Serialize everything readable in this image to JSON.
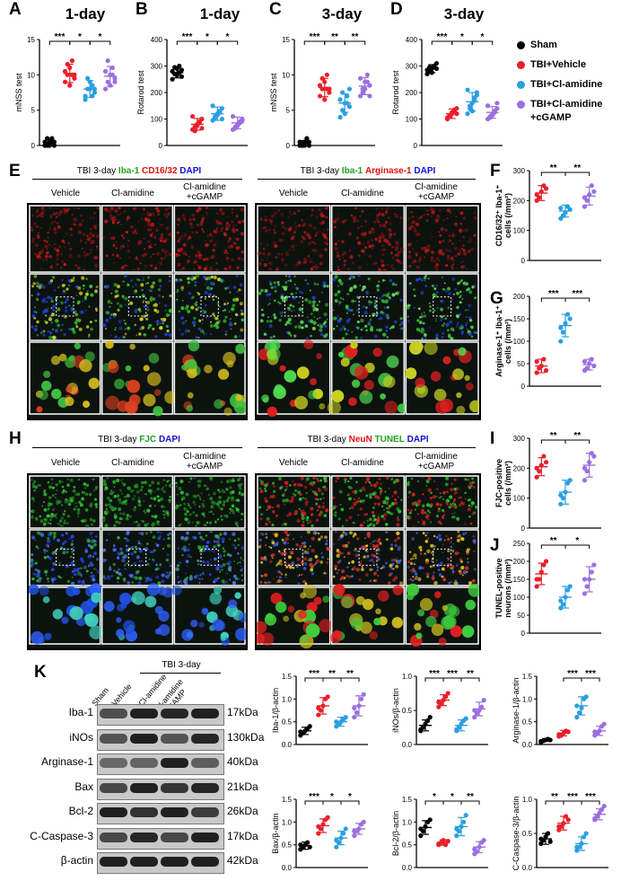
{
  "colors": {
    "sham": "#000000",
    "vehicle": "#e8202a",
    "clamidine": "#2a9fe0",
    "cgamp": "#9b6fe0"
  },
  "legend": [
    {
      "label": "Sham",
      "color": "#000000"
    },
    {
      "label": "TBI+Vehicle",
      "color": "#e8202a"
    },
    {
      "label": "TBI+Cl-amidine",
      "color": "#2a9fe0"
    },
    {
      "label": "TBI+Cl-amidine",
      "label2": "+cGAMP",
      "color": "#9b6fe0"
    }
  ],
  "panels": {
    "A": {
      "letter": "A",
      "title": "1-day",
      "ylabel": "mNSS test"
    },
    "B": {
      "letter": "B",
      "title": "1-day",
      "ylabel": "Rotarod test"
    },
    "C": {
      "letter": "C",
      "title": "3-day",
      "ylabel": "mNSS test"
    },
    "D": {
      "letter": "D",
      "title": "3-day",
      "ylabel": "Rotarod test"
    },
    "E": {
      "letter": "E",
      "left_title_pre": "TBI 3-day ",
      "left_s1": "Iba-1",
      "left_s2": "CD16/32",
      "left_s3": "DAPI",
      "right_title_pre": "TBI 3-day ",
      "right_s1": "Iba-1",
      "right_s2": "Arginase-1",
      "right_s3": "DAPI",
      "cols": [
        "Vehicle",
        "Cl-amidine",
        "Cl-amidine",
        "+cGAMP"
      ]
    },
    "F": {
      "letter": "F",
      "ylabel1": "CD16/32⁺ Iba-1⁺",
      "ylabel2": "cells (/mm²)"
    },
    "G": {
      "letter": "G",
      "ylabel1": "Arginase-1⁺ Iba-1⁺",
      "ylabel2": "cells (/mm²)"
    },
    "H": {
      "letter": "H",
      "left_title_pre": "TBI 3-day ",
      "left_s1": "FJC",
      "left_s3": "DAPI",
      "right_title_pre": "TBI 3-day ",
      "right_s1": "NeuN",
      "right_s2": "TUNEL",
      "right_s3": "DAPI"
    },
    "I": {
      "letter": "I",
      "ylabel1": "FJC-positive",
      "ylabel2": "cells (/mm²)"
    },
    "J": {
      "letter": "J",
      "ylabel1": "TUNEL-positive",
      "ylabel2": "neurons (/mm²)"
    },
    "K": {
      "letter": "K",
      "header": "TBI 3-day",
      "lanes": [
        "Sham",
        "Vehicle",
        "Cl-amidine",
        "Cl-amidine",
        "+cGAMP"
      ],
      "proteins": [
        {
          "name": "Iba-1",
          "kda": "17kDa"
        },
        {
          "name": "iNOs",
          "kda": "130kDa"
        },
        {
          "name": "Arginase-1",
          "kda": "40kDa"
        },
        {
          "name": "Bax",
          "kda": "21kDa"
        },
        {
          "name": "Bcl-2",
          "kda": "26kDa"
        },
        {
          "name": "C-Caspase-3",
          "kda": "17kDa"
        },
        {
          "name": "β-actin",
          "kda": "42kDa"
        }
      ]
    }
  },
  "chart_data": [
    {
      "id": "A",
      "type": "scatter",
      "title": "1-day",
      "ylabel": "mNSS test",
      "ylim": [
        0,
        15
      ],
      "yticks": [
        0,
        5,
        10,
        15
      ],
      "groups": [
        "Sham",
        "TBI+Vehicle",
        "TBI+Cl-amidine",
        "TBI+Cl-amidine+cGAMP"
      ],
      "means": [
        0.4,
        10.2,
        8.0,
        9.8
      ],
      "sd": [
        0.4,
        1.3,
        1.2,
        1.4
      ],
      "points": [
        [
          0,
          0,
          0.5,
          1,
          0,
          0.5,
          1,
          0,
          0.5,
          0.5
        ],
        [
          9,
          10,
          11,
          12,
          9.5,
          10.5,
          11.5,
          8.5,
          10,
          10
        ],
        [
          7,
          8,
          9,
          8.5,
          7.5,
          6.5,
          9.5,
          8,
          7,
          8
        ],
        [
          8,
          9,
          10,
          11,
          9.5,
          10.5,
          12,
          8.5,
          10,
          9
        ]
      ],
      "sig": [
        {
          "a": 0,
          "b": 1,
          "t": "***"
        },
        {
          "a": 1,
          "b": 2,
          "t": "*"
        },
        {
          "a": 2,
          "b": 3,
          "t": "*"
        }
      ]
    },
    {
      "id": "B",
      "type": "scatter",
      "title": "1-day",
      "ylabel": "Rotarod test",
      "ylim": [
        0,
        400
      ],
      "yticks": [
        0,
        100,
        200,
        300,
        400
      ],
      "groups": [
        "Sham",
        "TBI+Vehicle",
        "TBI+Cl-amidine",
        "TBI+Cl-amidine+cGAMP"
      ],
      "means": [
        275,
        80,
        120,
        85
      ],
      "sd": [
        20,
        22,
        25,
        22
      ],
      "points": [
        [
          250,
          270,
          290,
          300,
          260,
          280,
          295,
          265,
          275,
          285
        ],
        [
          60,
          70,
          80,
          90,
          100,
          110,
          55,
          75,
          85,
          65
        ],
        [
          95,
          110,
          120,
          130,
          140,
          150,
          105,
          115,
          125,
          100
        ],
        [
          60,
          70,
          80,
          90,
          100,
          110,
          65,
          75,
          85,
          95
        ]
      ],
      "sig": [
        {
          "a": 0,
          "b": 1,
          "t": "***"
        },
        {
          "a": 1,
          "b": 2,
          "t": "*"
        },
        {
          "a": 2,
          "b": 3,
          "t": "*"
        }
      ]
    },
    {
      "id": "C",
      "type": "scatter",
      "title": "3-day",
      "ylabel": "mNSS test",
      "ylim": [
        0,
        15
      ],
      "yticks": [
        0,
        5,
        10,
        15
      ],
      "groups": [
        "Sham",
        "TBI+Vehicle",
        "TBI+Cl-amidine",
        "TBI+Cl-amidine+cGAMP"
      ],
      "means": [
        0.3,
        8.2,
        6.0,
        8.4
      ],
      "sd": [
        0.4,
        1.3,
        1.3,
        1.2
      ],
      "points": [
        [
          0,
          0,
          0.5,
          1,
          0,
          0.5,
          0,
          0,
          0.5,
          0.5
        ],
        [
          7,
          8,
          9,
          10,
          7.5,
          8.5,
          9.5,
          6.5,
          8,
          8
        ],
        [
          4,
          5,
          6,
          7,
          5.5,
          6.5,
          7.5,
          4.5,
          6,
          8
        ],
        [
          7,
          8,
          9,
          10,
          8.5,
          9.5,
          7.5,
          8,
          9,
          7
        ]
      ],
      "sig": [
        {
          "a": 0,
          "b": 1,
          "t": "***"
        },
        {
          "a": 1,
          "b": 2,
          "t": "**"
        },
        {
          "a": 2,
          "b": 3,
          "t": "**"
        }
      ]
    },
    {
      "id": "D",
      "type": "scatter",
      "title": "3-day",
      "ylabel": "Rotarod test",
      "ylim": [
        0,
        400
      ],
      "yticks": [
        0,
        100,
        200,
        300,
        400
      ],
      "groups": [
        "Sham",
        "TBI+Vehicle",
        "TBI+Cl-amidine",
        "TBI+Cl-amidine+cGAMP"
      ],
      "means": [
        290,
        120,
        165,
        125
      ],
      "sd": [
        15,
        18,
        35,
        22
      ],
      "points": [
        [
          270,
          280,
          290,
          300,
          310,
          285,
          295,
          275,
          300,
          290
        ],
        [
          100,
          110,
          120,
          130,
          140,
          105,
          115,
          125,
          135,
          120
        ],
        [
          120,
          140,
          160,
          180,
          200,
          210,
          150,
          130,
          170,
          190
        ],
        [
          100,
          110,
          120,
          130,
          140,
          150,
          105,
          115,
          125,
          160
        ]
      ],
      "sig": [
        {
          "a": 0,
          "b": 1,
          "t": "***"
        },
        {
          "a": 1,
          "b": 2,
          "t": "*"
        },
        {
          "a": 2,
          "b": 3,
          "t": "*"
        }
      ]
    },
    {
      "id": "F",
      "type": "scatter",
      "ylabel": "CD16/32⁺ Iba-1⁺ cells (/mm²)",
      "ylim": [
        0,
        300
      ],
      "yticks": [
        0,
        100,
        200,
        300
      ],
      "groups": [
        "TBI+Vehicle",
        "TBI+Cl-amidine",
        "TBI+Cl-amidine+cGAMP"
      ],
      "means": [
        225,
        165,
        215
      ],
      "sd": [
        25,
        20,
        30
      ],
      "points": [
        [
          200,
          210,
          230,
          250,
          240,
          220
        ],
        [
          140,
          150,
          160,
          180,
          170,
          175
        ],
        [
          180,
          200,
          220,
          250,
          230,
          210
        ]
      ],
      "sig": [
        {
          "a": 0,
          "b": 1,
          "t": "**"
        },
        {
          "a": 1,
          "b": 2,
          "t": "**"
        }
      ]
    },
    {
      "id": "G",
      "type": "scatter",
      "ylabel": "Arginase-1⁺ Iba-1⁺ cells (/mm²)",
      "ylim": [
        0,
        200
      ],
      "yticks": [
        0,
        50,
        100,
        150,
        200
      ],
      "groups": [
        "TBI+Vehicle",
        "TBI+Cl-amidine",
        "TBI+Cl-amidine+cGAMP"
      ],
      "means": [
        45,
        135,
        48
      ],
      "sd": [
        15,
        25,
        12
      ],
      "points": [
        [
          30,
          40,
          45,
          60,
          35,
          55
        ],
        [
          100,
          120,
          140,
          160,
          150,
          130
        ],
        [
          35,
          40,
          50,
          60,
          45,
          55
        ]
      ],
      "sig": [
        {
          "a": 0,
          "b": 1,
          "t": "***"
        },
        {
          "a": 1,
          "b": 2,
          "t": "***"
        }
      ]
    },
    {
      "id": "I",
      "type": "scatter",
      "ylabel": "FJC-positive cells (/mm²)",
      "ylim": [
        0,
        300
      ],
      "yticks": [
        0,
        100,
        200,
        300
      ],
      "groups": [
        "TBI+Vehicle",
        "TBI+Cl-amidine",
        "TBI+Cl-amidine+cGAMP"
      ],
      "means": [
        205,
        120,
        210
      ],
      "sd": [
        30,
        40,
        40
      ],
      "points": [
        [
          170,
          190,
          210,
          240,
          220,
          200
        ],
        [
          80,
          100,
          120,
          150,
          160,
          110
        ],
        [
          160,
          190,
          220,
          250,
          240,
          200
        ]
      ],
      "sig": [
        {
          "a": 0,
          "b": 1,
          "t": "**"
        },
        {
          "a": 1,
          "b": 2,
          "t": "**"
        }
      ]
    },
    {
      "id": "J",
      "type": "scatter",
      "ylabel": "TUNEL-positive neurons (/mm²)",
      "ylim": [
        0,
        250
      ],
      "yticks": [
        0,
        50,
        100,
        150,
        200,
        250
      ],
      "groups": [
        "TBI+Vehicle",
        "TBI+Cl-amidine",
        "TBI+Cl-amidine+cGAMP"
      ],
      "means": [
        165,
        100,
        150
      ],
      "sd": [
        30,
        30,
        35
      ],
      "points": [
        [
          130,
          150,
          170,
          190,
          200,
          150
        ],
        [
          70,
          80,
          100,
          120,
          130,
          90
        ],
        [
          110,
          130,
          150,
          170,
          190,
          150
        ]
      ],
      "sig": [
        {
          "a": 0,
          "b": 1,
          "t": "**"
        },
        {
          "a": 1,
          "b": 2,
          "t": "*"
        }
      ]
    },
    {
      "id": "K1",
      "type": "scatter",
      "ylabel": "Iba-1/β-actin",
      "ylim": [
        0,
        1.5
      ],
      "yticks": [
        0.0,
        0.5,
        1.0,
        1.5
      ],
      "groups": [
        "Sham",
        "TBI+Vehicle",
        "TBI+Cl-amidine",
        "TBI+Cl-amidine+cGAMP"
      ],
      "means": [
        0.3,
        0.85,
        0.5,
        0.85
      ],
      "sd": [
        0.08,
        0.18,
        0.1,
        0.22
      ],
      "points": [
        [
          0.2,
          0.25,
          0.3,
          0.35,
          0.4,
          0.28
        ],
        [
          0.65,
          0.75,
          0.85,
          1.0,
          1.05,
          0.8
        ],
        [
          0.4,
          0.45,
          0.5,
          0.55,
          0.6,
          0.5
        ],
        [
          0.6,
          0.7,
          0.85,
          1.0,
          1.1,
          0.8
        ]
      ],
      "sig": [
        {
          "a": 0,
          "b": 1,
          "t": "***"
        },
        {
          "a": 1,
          "b": 2,
          "t": "**"
        },
        {
          "a": 2,
          "b": 3,
          "t": "**"
        }
      ]
    },
    {
      "id": "K2",
      "type": "scatter",
      "ylabel": "iNOs/β-actin",
      "ylim": [
        0,
        1.0
      ],
      "yticks": [
        0.0,
        0.5,
        1.0
      ],
      "groups": [
        "Sham",
        "TBI+Vehicle",
        "TBI+Cl-amidine",
        "TBI+Cl-amidine+cGAMP"
      ],
      "means": [
        0.28,
        0.65,
        0.28,
        0.52
      ],
      "sd": [
        0.08,
        0.08,
        0.08,
        0.1
      ],
      "points": [
        [
          0.2,
          0.25,
          0.3,
          0.35,
          0.4,
          0.22
        ],
        [
          0.55,
          0.6,
          0.65,
          0.7,
          0.75,
          0.62
        ],
        [
          0.2,
          0.25,
          0.3,
          0.35,
          0.38,
          0.22
        ],
        [
          0.4,
          0.45,
          0.5,
          0.55,
          0.65,
          0.5
        ]
      ],
      "sig": [
        {
          "a": 0,
          "b": 1,
          "t": "***"
        },
        {
          "a": 1,
          "b": 2,
          "t": "***"
        },
        {
          "a": 2,
          "b": 3,
          "t": "**"
        }
      ]
    },
    {
      "id": "K3",
      "type": "scatter",
      "ylabel": "Arginase-1/β-actin",
      "ylim": [
        0,
        1.5
      ],
      "yticks": [
        0.0,
        0.5,
        1.0,
        1.5
      ],
      "groups": [
        "Sham",
        "TBI+Vehicle",
        "TBI+Cl-amidine",
        "TBI+Cl-amidine+cGAMP"
      ],
      "means": [
        0.1,
        0.25,
        0.85,
        0.3
      ],
      "sd": [
        0.03,
        0.06,
        0.2,
        0.1
      ],
      "points": [
        [
          0.05,
          0.08,
          0.1,
          0.12,
          0.1,
          0.07
        ],
        [
          0.18,
          0.2,
          0.25,
          0.3,
          0.28,
          0.22
        ],
        [
          0.6,
          0.7,
          0.8,
          1.0,
          1.05,
          0.85
        ],
        [
          0.2,
          0.25,
          0.3,
          0.4,
          0.45,
          0.28
        ]
      ],
      "sig": [
        {
          "a": 1,
          "b": 2,
          "t": "***"
        },
        {
          "a": 2,
          "b": 3,
          "t": "***"
        }
      ]
    },
    {
      "id": "K4",
      "type": "scatter",
      "ylabel": "Bax/β-actin",
      "ylim": [
        0,
        1.5
      ],
      "yticks": [
        0.0,
        0.5,
        1.0,
        1.5
      ],
      "groups": [
        "Sham",
        "TBI+Vehicle",
        "TBI+Cl-amidine",
        "TBI+Cl-amidine+cGAMP"
      ],
      "means": [
        0.48,
        0.92,
        0.65,
        0.85
      ],
      "sd": [
        0.08,
        0.15,
        0.15,
        0.12
      ],
      "points": [
        [
          0.4,
          0.45,
          0.5,
          0.55,
          0.45,
          0.5
        ],
        [
          0.75,
          0.85,
          0.95,
          1.05,
          1.1,
          0.9
        ],
        [
          0.45,
          0.55,
          0.65,
          0.75,
          0.85,
          0.6
        ],
        [
          0.7,
          0.8,
          0.85,
          0.95,
          1.0,
          0.8
        ]
      ],
      "sig": [
        {
          "a": 0,
          "b": 1,
          "t": "***"
        },
        {
          "a": 1,
          "b": 2,
          "t": "*"
        },
        {
          "a": 2,
          "b": 3,
          "t": "*"
        }
      ]
    },
    {
      "id": "K5",
      "type": "scatter",
      "ylabel": "Bcl-2/β-actin",
      "ylim": [
        0,
        1.5
      ],
      "yticks": [
        0.0,
        0.5,
        1.0,
        1.5
      ],
      "groups": [
        "Sham",
        "TBI+Vehicle",
        "TBI+Cl-amidine",
        "TBI+Cl-amidine+cGAMP"
      ],
      "means": [
        0.88,
        0.55,
        0.9,
        0.45
      ],
      "sd": [
        0.15,
        0.06,
        0.2,
        0.12
      ],
      "points": [
        [
          0.7,
          0.8,
          0.9,
          1.0,
          1.05,
          0.85
        ],
        [
          0.5,
          0.55,
          0.6,
          0.5,
          0.58,
          0.52
        ],
        [
          0.7,
          0.8,
          0.9,
          1.0,
          1.15,
          0.85
        ],
        [
          0.3,
          0.35,
          0.45,
          0.55,
          0.6,
          0.4
        ]
      ],
      "sig": [
        {
          "a": 0,
          "b": 1,
          "t": "*"
        },
        {
          "a": 1,
          "b": 2,
          "t": "*"
        },
        {
          "a": 2,
          "b": 3,
          "t": "**"
        }
      ]
    },
    {
      "id": "K6",
      "type": "scatter",
      "ylabel": "C-Caspase-3/β-actin",
      "ylim": [
        0,
        1.0
      ],
      "yticks": [
        0.0,
        0.5,
        1.0
      ],
      "groups": [
        "Sham",
        "TBI+Vehicle",
        "TBI+Cl-amidine",
        "TBI+Cl-amidine+cGAMP"
      ],
      "means": [
        0.42,
        0.65,
        0.35,
        0.78
      ],
      "sd": [
        0.08,
        0.1,
        0.1,
        0.08
      ],
      "points": [
        [
          0.35,
          0.4,
          0.45,
          0.5,
          0.38,
          0.42
        ],
        [
          0.55,
          0.6,
          0.65,
          0.75,
          0.7,
          0.6
        ],
        [
          0.25,
          0.3,
          0.35,
          0.45,
          0.5,
          0.3
        ],
        [
          0.7,
          0.75,
          0.8,
          0.85,
          0.9,
          0.72
        ]
      ],
      "sig": [
        {
          "a": 0,
          "b": 1,
          "t": "**"
        },
        {
          "a": 1,
          "b": 2,
          "t": "***"
        },
        {
          "a": 2,
          "b": 3,
          "t": "***"
        }
      ]
    }
  ]
}
